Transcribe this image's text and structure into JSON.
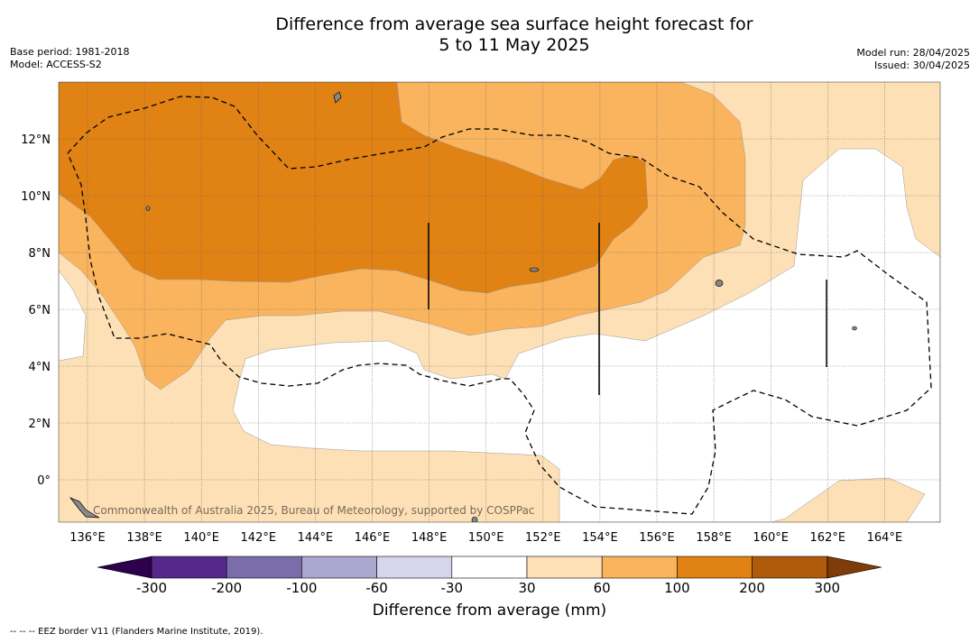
{
  "title_line1": "Difference from average sea surface height forecast for",
  "title_line2": "5 to 11 May 2025",
  "base_period": "Base period: 1981-2018",
  "model": "Model: ACCESS-S2",
  "model_run": "Model run: 28/04/2025",
  "issued": "Issued: 30/04/2025",
  "credit": "Commonwealth of Australia 2025, Bureau of Meteorology, supported by COSPPac",
  "footnote": "--  --  -- EEZ border V11 (Flanders Marine Institute, 2019).",
  "lon_labels": [
    "136°E",
    "138°E",
    "140°E",
    "142°E",
    "144°E",
    "146°E",
    "148°E",
    "150°E",
    "152°E",
    "154°E",
    "156°E",
    "158°E",
    "160°E",
    "162°E",
    "164°E"
  ],
  "lat_labels": [
    "12°N",
    "10°N",
    "8°N",
    "6°N",
    "4°N",
    "2°N",
    "0°"
  ],
  "colorbar": {
    "title": "Difference from average (mm)",
    "labels": [
      "-300",
      "-200",
      "-100",
      "-60",
      "-30",
      "30",
      "60",
      "100",
      "200",
      "300"
    ],
    "colors": [
      "#55288c",
      "#7b6daa",
      "#aca7cf",
      "#d5d5eb",
      "#ffffff",
      "#fde0b6",
      "#f9b45d",
      "#e08214",
      "#b05a0c"
    ],
    "under_color": "#2d004b",
    "over_color": "#7f3b08"
  }
}
